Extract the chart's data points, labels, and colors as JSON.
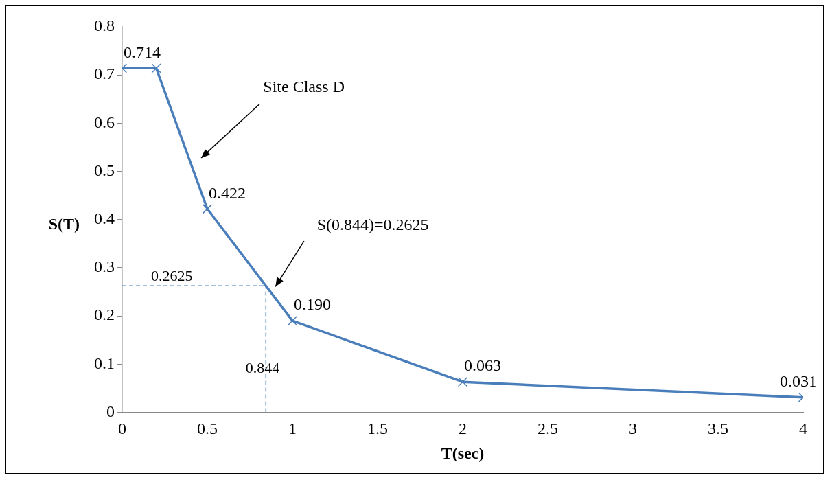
{
  "chart_data": {
    "type": "line",
    "xlabel": "T(sec)",
    "ylabel": "S(T)",
    "x": [
      0,
      0.2,
      0.5,
      1,
      2,
      4
    ],
    "series": [
      {
        "color": "#4a7ebb",
        "values": [
          0.714,
          0.714,
          0.422,
          0.19,
          0.063,
          0.031
        ],
        "value_labels": [
          "0.714",
          null,
          "0.422",
          "0.190",
          "0.063",
          "0.031"
        ]
      }
    ],
    "marker": "cross",
    "line_style": "solid",
    "xlim": [
      0,
      4
    ],
    "xticks": [
      0,
      0.5,
      1,
      1.5,
      2,
      2.5,
      3,
      3.5,
      4
    ],
    "ylim": [
      0,
      0.8
    ],
    "yticks": [
      0,
      0.1,
      0.2,
      0.3,
      0.4,
      0.5,
      0.6,
      0.7,
      0.8
    ],
    "ref_lines": [
      {
        "axis": "x",
        "value": 0.844,
        "label": "0.844",
        "color": "#4a7ebb",
        "line_style": "dashed"
      },
      {
        "axis": "y",
        "value": 0.2625,
        "label": "0.2625",
        "color": "#4a7ebb",
        "line_style": "dashed"
      }
    ],
    "annotations": [
      "Site Class D",
      "S(0.844)=0.2625"
    ]
  }
}
